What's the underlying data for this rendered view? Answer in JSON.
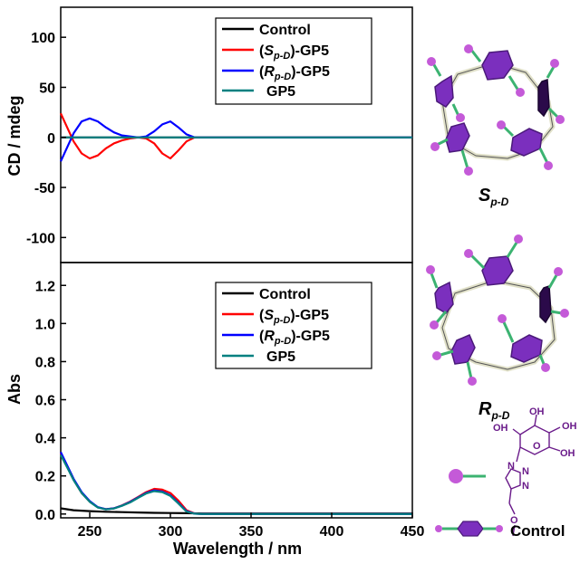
{
  "chart_data": [
    {
      "type": "line",
      "panel": "top",
      "ylabel": "CD / mdeg",
      "xlim": [
        232,
        450
      ],
      "ylim": [
        -125,
        130
      ],
      "yticks": [
        100,
        50,
        0,
        -50,
        -100
      ],
      "yticks_labels": [
        "100",
        "50",
        "0",
        "-50",
        "-100"
      ],
      "grid": false,
      "legend_position": "top-right",
      "series": [
        {
          "name": "Control",
          "color": "#000000",
          "x": [
            232,
            300,
            320,
            450
          ],
          "y": [
            0,
            0,
            0,
            0
          ]
        },
        {
          "name": "(Sp-D)-GP5",
          "color": "#ff0000",
          "x": [
            232,
            236,
            240,
            245,
            250,
            255,
            260,
            265,
            270,
            275,
            280,
            285,
            290,
            295,
            300,
            305,
            310,
            315,
            320,
            450
          ],
          "y": [
            24,
            10,
            -4,
            -16,
            -21,
            -18,
            -11,
            -6,
            -3,
            -1,
            0,
            -1,
            -6,
            -16,
            -21,
            -13,
            -4,
            0,
            0,
            0
          ]
        },
        {
          "name": "(Rp-D)-GP5",
          "color": "#0000ff",
          "x": [
            232,
            236,
            240,
            245,
            250,
            255,
            260,
            265,
            270,
            275,
            280,
            285,
            290,
            295,
            300,
            305,
            310,
            315,
            320,
            450
          ],
          "y": [
            -24,
            -10,
            4,
            16,
            19,
            16,
            10,
            5,
            2,
            1,
            0,
            1,
            6,
            13,
            16,
            10,
            3,
            0,
            0,
            0
          ]
        },
        {
          "name": "GP5",
          "color": "#008080",
          "x": [
            232,
            260,
            300,
            320,
            450
          ],
          "y": [
            0,
            0,
            0,
            0,
            0
          ]
        }
      ],
      "legend_labels": [
        {
          "key": "control",
          "text": "Control"
        },
        {
          "key": "s",
          "pre": "(",
          "main": "S",
          "sub": "p-D",
          "post": ")-GP5"
        },
        {
          "key": "r",
          "pre": "(",
          "main": "R",
          "sub": "p-D",
          "post": ")-GP5"
        },
        {
          "key": "gp5",
          "text": "GP5"
        }
      ]
    },
    {
      "type": "line",
      "panel": "bottom",
      "xlabel": "Wavelength / nm",
      "ylabel": "Abs",
      "xlim": [
        232,
        450
      ],
      "ylim": [
        -0.02,
        1.32
      ],
      "xticks": [
        250,
        300,
        350,
        400,
        450
      ],
      "xticks_labels": [
        "250",
        "300",
        "350",
        "400",
        "450"
      ],
      "yticks": [
        0.0,
        0.2,
        0.4,
        0.6,
        0.8,
        1.0,
        1.2
      ],
      "yticks_labels": [
        "0.0",
        "0.2",
        "0.4",
        "0.6",
        "0.8",
        "1.0",
        "1.2"
      ],
      "grid": false,
      "legend_position": "top-right",
      "series": [
        {
          "name": "Control",
          "color": "#000000",
          "x": [
            232,
            240,
            250,
            260,
            270,
            280,
            290,
            300,
            310,
            320,
            450
          ],
          "y": [
            0.03,
            0.02,
            0.015,
            0.012,
            0.01,
            0.008,
            0.006,
            0.005,
            0.004,
            0.003,
            0.003
          ]
        },
        {
          "name": "(Sp-D)-GP5",
          "color": "#ff0000",
          "x": [
            232,
            236,
            240,
            245,
            250,
            255,
            260,
            265,
            270,
            275,
            280,
            285,
            290,
            295,
            300,
            305,
            310,
            315,
            320,
            450
          ],
          "y": [
            0.32,
            0.25,
            0.18,
            0.11,
            0.065,
            0.035,
            0.025,
            0.03,
            0.045,
            0.065,
            0.09,
            0.115,
            0.132,
            0.128,
            0.11,
            0.07,
            0.02,
            0.003,
            0.0,
            0.0
          ]
        },
        {
          "name": "(Rp-D)-GP5",
          "color": "#0000ff",
          "x": [
            232,
            236,
            240,
            245,
            250,
            255,
            260,
            265,
            270,
            275,
            280,
            285,
            290,
            295,
            300,
            305,
            310,
            315,
            320,
            450
          ],
          "y": [
            0.325,
            0.255,
            0.185,
            0.115,
            0.068,
            0.036,
            0.025,
            0.03,
            0.044,
            0.063,
            0.087,
            0.11,
            0.124,
            0.118,
            0.098,
            0.058,
            0.015,
            0.002,
            0.0,
            0.0
          ]
        },
        {
          "name": "GP5",
          "color": "#008080",
          "x": [
            232,
            236,
            240,
            245,
            250,
            255,
            260,
            265,
            270,
            275,
            280,
            285,
            290,
            295,
            300,
            305,
            310,
            315,
            320,
            450
          ],
          "y": [
            0.31,
            0.245,
            0.178,
            0.11,
            0.064,
            0.034,
            0.024,
            0.029,
            0.043,
            0.061,
            0.085,
            0.108,
            0.12,
            0.115,
            0.095,
            0.055,
            0.013,
            0.002,
            0.0,
            0.0
          ]
        }
      ],
      "legend_labels": [
        {
          "key": "control",
          "text": "Control"
        },
        {
          "key": "s",
          "pre": "(",
          "main": "S",
          "sub": "p-D",
          "post": ")-GP5"
        },
        {
          "key": "r",
          "pre": "(",
          "main": "R",
          "sub": "p-D",
          "post": ")-GP5"
        },
        {
          "key": "gp5",
          "text": "GP5"
        }
      ]
    }
  ],
  "molecules": {
    "top_label_main": "S",
    "top_label_sub": "p-D",
    "bottom_label_main": "R",
    "bottom_label_sub": "p-D",
    "structure_oh_1": "OH",
    "structure_oh_2": "OH",
    "structure_oh_3": "OH",
    "structure_oh_4": "OH",
    "structure_o_ring": "O",
    "structure_o_link": "O",
    "structure_n_1": "N",
    "structure_n_2": "N",
    "structure_n_3": "N",
    "control_label": "Control"
  },
  "colors": {
    "hexagon": "#7b2fbe",
    "hexagon_dark": "#4b1a7a",
    "sphere": "#c45ad8",
    "linker": "#3cb371",
    "bridge": "#e0e0c8",
    "structure": "#6a1b8a"
  }
}
